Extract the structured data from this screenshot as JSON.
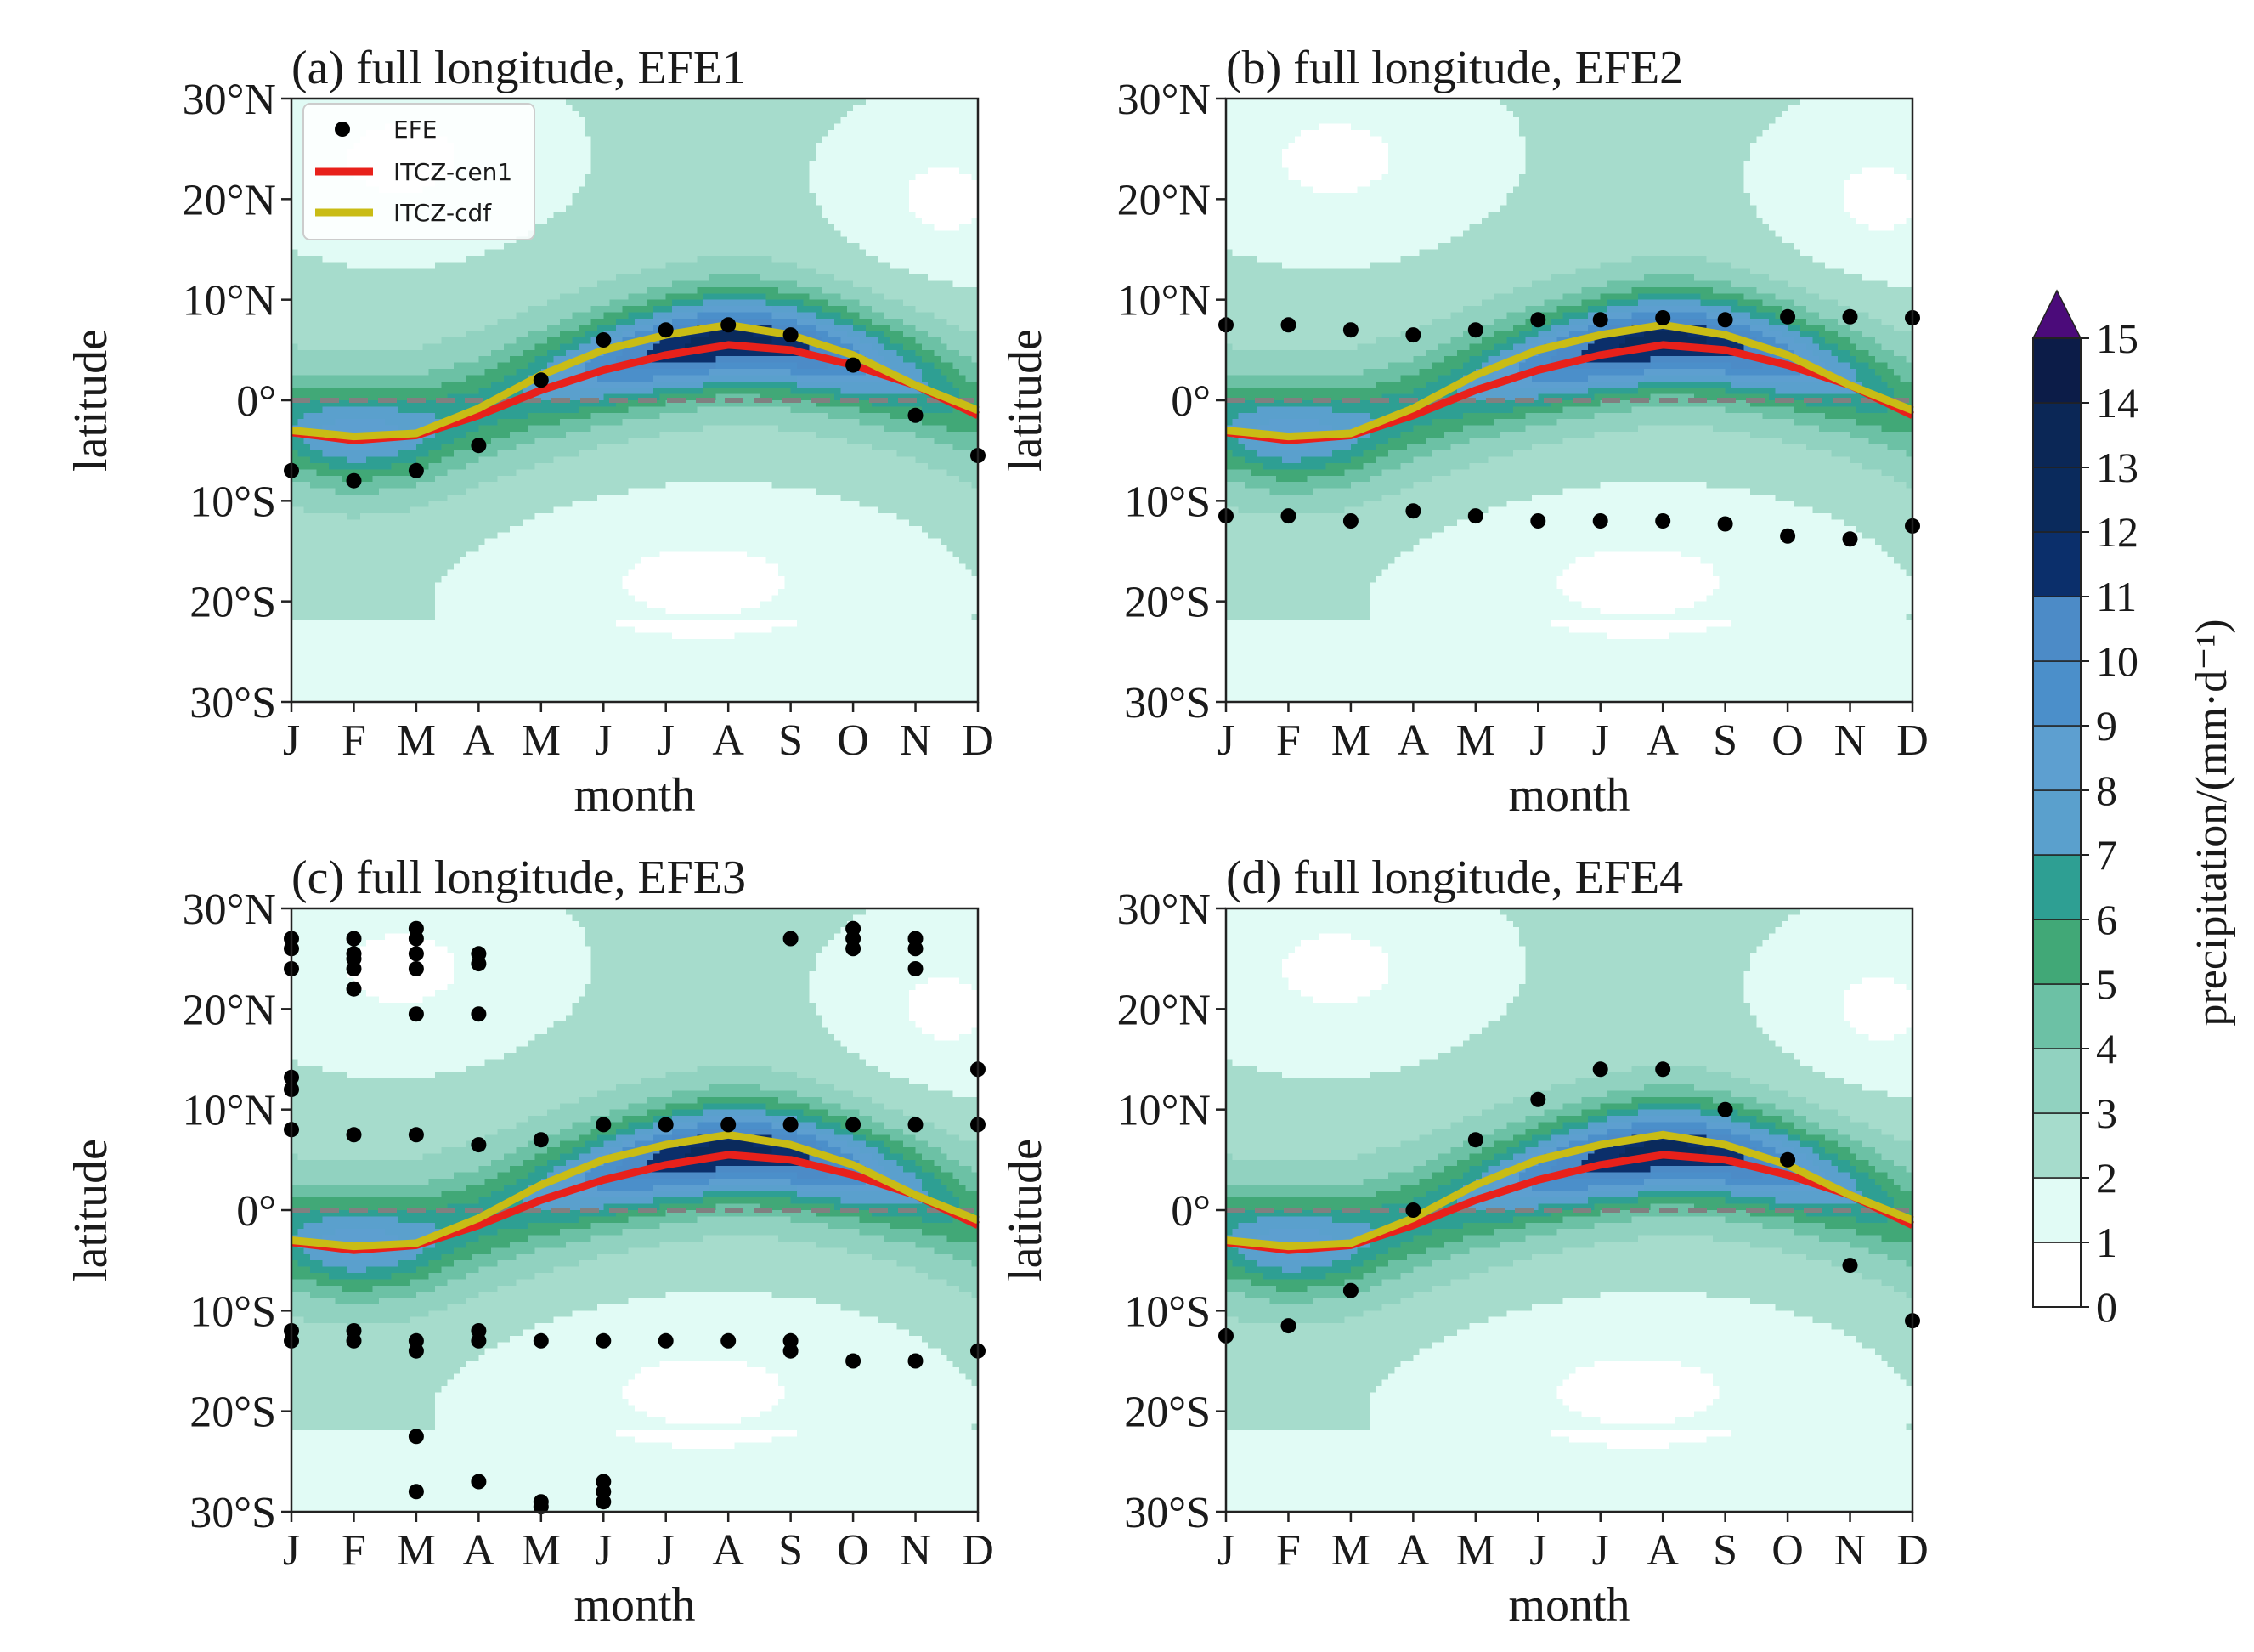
{
  "figure": {
    "x_axis_label": "month",
    "y_axis_label": "latitude",
    "colorbar_label": "precipitation/(mm·d⁻¹)",
    "legend": {
      "efe": "EFE",
      "cen1": "ITCZ-cen1",
      "cdf": "ITCZ-cdf"
    }
  },
  "chart_data": {
    "type": "contour",
    "months": [
      "J",
      "F",
      "M",
      "A",
      "M",
      "J",
      "J",
      "A",
      "S",
      "O",
      "N",
      "D"
    ],
    "lat_ticks": [
      "30°N",
      "20°N",
      "10°N",
      "0°",
      "10°S",
      "20°S",
      "30°S"
    ],
    "lat_tick_values": [
      30,
      20,
      10,
      0,
      -10,
      -20,
      -30
    ],
    "ylim": [
      -30,
      30
    ],
    "xlim": [
      1,
      12
    ],
    "colorbar": {
      "levels": [
        0,
        1,
        2,
        3,
        4,
        5,
        6,
        7,
        8,
        9,
        10,
        11,
        12,
        13,
        14,
        15
      ],
      "colors": [
        "#ffffff",
        "#e1fbf5",
        "#a6dccc",
        "#91d2c0",
        "#6cc1a5",
        "#41a877",
        "#2e9f93",
        "#5aa0cd",
        "#5d9fd0",
        "#4b8fca",
        "#4c8bc7",
        "#0b2f6b",
        "#0a2a5c",
        "#0b2756",
        "#0c1c48",
        "#4b0b7a"
      ],
      "extend": "max"
    },
    "itcz_cen1": [
      -3.2,
      -4,
      -3.5,
      -1.5,
      1,
      3,
      4.5,
      5.5,
      5,
      3.5,
      1.5,
      -1.5
    ],
    "itcz_cdf": [
      -3,
      -3.6,
      -3.3,
      -0.8,
      2.5,
      5,
      6.5,
      7.5,
      6.5,
      4.5,
      1.5,
      -1
    ],
    "panels": [
      {
        "title": "(a) full longitude, EFE1",
        "efe": [
          [
            1,
            -7
          ],
          [
            2,
            -8
          ],
          [
            3,
            -7
          ],
          [
            4,
            -4.5
          ],
          [
            5,
            2
          ],
          [
            6,
            6
          ],
          [
            7,
            7
          ],
          [
            8,
            7.5
          ],
          [
            9,
            6.5
          ],
          [
            10,
            3.5
          ],
          [
            11,
            -1.5
          ],
          [
            12,
            -5.5
          ]
        ]
      },
      {
        "title": "(b) full longitude, EFE2",
        "efe": [
          [
            1,
            7.5
          ],
          [
            2,
            7.5
          ],
          [
            3,
            7
          ],
          [
            4,
            6.5
          ],
          [
            5,
            7
          ],
          [
            6,
            8
          ],
          [
            7,
            8
          ],
          [
            8,
            8.2
          ],
          [
            9,
            8
          ],
          [
            10,
            8.3
          ],
          [
            11,
            8.3
          ],
          [
            12,
            8.2
          ],
          [
            1,
            -11.5
          ],
          [
            2,
            -11.5
          ],
          [
            3,
            -12
          ],
          [
            4,
            -11
          ],
          [
            5,
            -11.5
          ],
          [
            6,
            -12
          ],
          [
            7,
            -12
          ],
          [
            8,
            -12
          ],
          [
            9,
            -12.3
          ],
          [
            10,
            -13.5
          ],
          [
            11,
            -13.8
          ],
          [
            12,
            -12.5
          ]
        ]
      },
      {
        "title": "(c) full longitude, EFE3",
        "efe": [
          [
            1,
            27
          ],
          [
            1,
            26
          ],
          [
            1,
            24
          ],
          [
            1,
            13.2
          ],
          [
            1,
            12
          ],
          [
            1,
            8
          ],
          [
            2,
            27
          ],
          [
            2,
            25.5
          ],
          [
            2,
            25
          ],
          [
            2,
            24
          ],
          [
            2,
            22
          ],
          [
            2,
            7.5
          ],
          [
            3,
            28
          ],
          [
            3,
            27
          ],
          [
            3,
            25.5
          ],
          [
            3,
            24
          ],
          [
            3,
            19.5
          ],
          [
            3,
            7.5
          ],
          [
            4,
            25.5
          ],
          [
            4,
            24.5
          ],
          [
            4,
            19.5
          ],
          [
            4,
            6.5
          ],
          [
            5,
            7
          ],
          [
            6,
            8.5
          ],
          [
            7,
            8.5
          ],
          [
            8,
            8.5
          ],
          [
            9,
            27
          ],
          [
            9,
            8.5
          ],
          [
            10,
            28
          ],
          [
            10,
            27
          ],
          [
            10,
            26
          ],
          [
            10,
            8.5
          ],
          [
            11,
            27
          ],
          [
            11,
            26
          ],
          [
            11,
            24
          ],
          [
            11,
            8.5
          ],
          [
            12,
            14
          ],
          [
            12,
            8.5
          ],
          [
            1,
            -12
          ],
          [
            1,
            -13
          ],
          [
            2,
            -12
          ],
          [
            2,
            -13
          ],
          [
            3,
            -13
          ],
          [
            3,
            -14
          ],
          [
            3,
            -22.5
          ],
          [
            3,
            -28
          ],
          [
            4,
            -12
          ],
          [
            4,
            -13
          ],
          [
            4,
            -27
          ],
          [
            5,
            -13
          ],
          [
            5,
            -29
          ],
          [
            5,
            -29.5
          ],
          [
            6,
            -13
          ],
          [
            6,
            -27
          ],
          [
            6,
            -28
          ],
          [
            6,
            -29
          ],
          [
            7,
            -13
          ],
          [
            8,
            -13
          ],
          [
            9,
            -13
          ],
          [
            9,
            -14
          ],
          [
            10,
            -15
          ],
          [
            11,
            -15
          ],
          [
            12,
            -14
          ]
        ]
      },
      {
        "title": "(d) full longitude, EFE4",
        "efe": [
          [
            1,
            -12.5
          ],
          [
            2,
            -11.5
          ],
          [
            3,
            -8
          ],
          [
            4,
            0
          ],
          [
            5,
            7
          ],
          [
            6,
            11
          ],
          [
            7,
            14
          ],
          [
            8,
            14
          ],
          [
            9,
            10
          ],
          [
            10,
            5
          ],
          [
            11,
            -5.5
          ],
          [
            12,
            -11
          ]
        ]
      }
    ]
  }
}
